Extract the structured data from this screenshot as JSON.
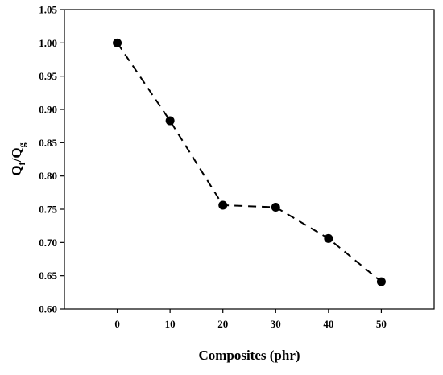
{
  "chart_data": {
    "type": "line",
    "x": [
      0,
      10,
      20,
      30,
      40,
      50
    ],
    "series": [
      {
        "values": [
          1.0,
          0.883,
          0.756,
          0.753,
          0.706,
          0.641
        ]
      }
    ],
    "xlabel": "Composites (phr)",
    "ylabel_main": "Q",
    "ylabel_sub1": "f",
    "ylabel_slash": "/Q",
    "ylabel_sub2": "g",
    "xlim": [
      -10,
      60
    ],
    "ylim": [
      0.6,
      1.05
    ],
    "xticks": [
      "0",
      "10",
      "20",
      "30",
      "40",
      "50"
    ],
    "yticks": [
      "0.60",
      "0.65",
      "0.70",
      "0.75",
      "0.80",
      "0.85",
      "0.90",
      "0.95",
      "1.00",
      "1.05"
    ],
    "line_style": "dashed",
    "marker": "filled-circle",
    "grid": false,
    "colors": {
      "line": "#000000",
      "marker": "#000000",
      "axis": "#000000"
    }
  }
}
